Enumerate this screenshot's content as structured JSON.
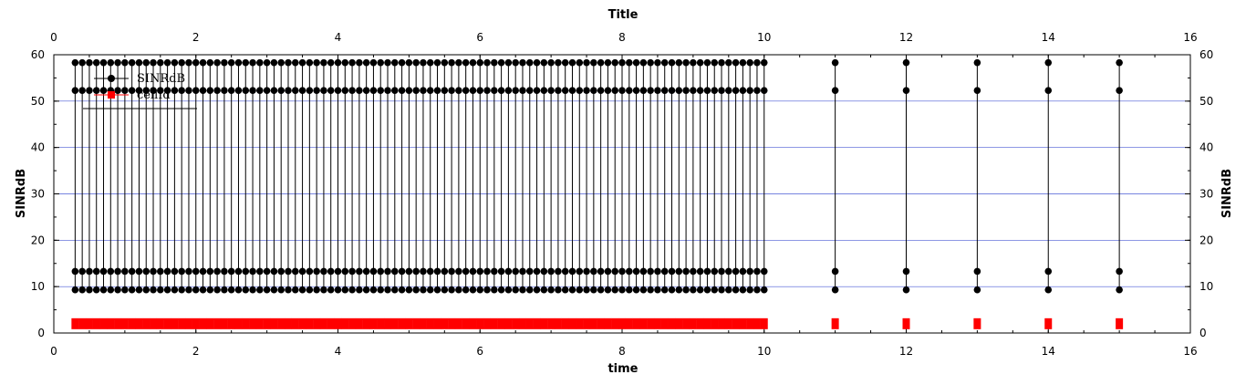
{
  "chart_data": {
    "type": "line",
    "title": "Title",
    "xlabel": "time",
    "ylabel": "SINRdB",
    "ylabel_right": "SINRdB",
    "xlim": [
      0,
      16
    ],
    "ylim": [
      0,
      60
    ],
    "x_ticks": [
      "0",
      "2",
      "4",
      "6",
      "8",
      "10",
      "12",
      "14",
      "16"
    ],
    "y_ticks": [
      "0",
      "10",
      "20",
      "30",
      "40",
      "50",
      "60"
    ],
    "grid": {
      "horizontal": true,
      "color": "#4a5bd4"
    },
    "legend": {
      "position": "top-left",
      "entries": [
        {
          "name": "SINRdB",
          "color": "#000000",
          "marker": "circle"
        },
        {
          "name": "cellId",
          "color": "#ff0000",
          "marker": "square"
        }
      ]
    },
    "series": [
      {
        "name": "SINRdB",
        "color": "#000000",
        "marker": "circle",
        "style": "vertical lines per time step, four levels per step",
        "levels": [
          9.3,
          13.3,
          52.3,
          58.3
        ],
        "x_dense_start": 0.3,
        "x_dense_end": 10.0,
        "x_dense_step": 0.1,
        "x_sparse": [
          11,
          12,
          13,
          14,
          15
        ]
      },
      {
        "name": "cellId",
        "color": "#ff0000",
        "marker": "square",
        "value": 2,
        "x_dense_start": 0.3,
        "x_dense_end": 10.0,
        "x_dense_step": 0.1,
        "x_sparse": [
          11,
          12,
          13,
          14,
          15
        ]
      }
    ]
  }
}
